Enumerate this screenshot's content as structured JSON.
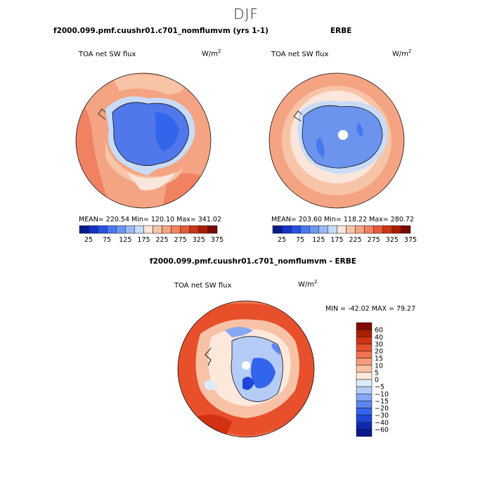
{
  "figure": {
    "title": "DJF"
  },
  "panels": {
    "model": {
      "title": "f2000.099.pmf.cuushr01.c701_nomflumvm (yrs 1-1)",
      "variable": "TOA net SW flux",
      "units_base": "W/m",
      "units_exp": "2",
      "stats_text": "MEAN= 220.54   Min= 120.10   Max= 341.02"
    },
    "obs": {
      "title": "ERBE",
      "variable": "TOA net SW flux",
      "units_base": "W/m",
      "units_exp": "2",
      "stats_text": "MEAN= 203.60   Min= 118.22   Max= 280.72"
    },
    "diff": {
      "title": "f2000.099.pmf.cuushr01.c701_nomflumvm - ERBE",
      "variable": "TOA net SW flux",
      "units_base": "W/m",
      "units_exp": "2",
      "stats_text": "MIN = -42.02  MAX =  79.27"
    }
  },
  "colors": {
    "abs_scale": [
      "#0a1a8c",
      "#1432c8",
      "#2850e6",
      "#4678f0",
      "#6c96f0",
      "#9ab8f4",
      "#c8dcf8",
      "#fbe6dc",
      "#f8c4a8",
      "#f4a482",
      "#f08262",
      "#e65a3a",
      "#cc3614",
      "#a81e06",
      "#7a0a00"
    ],
    "diff_scale": [
      "#0a1a8c",
      "#0f2ab0",
      "#1e46d8",
      "#3264ec",
      "#5a86f0",
      "#86a8f2",
      "#b4ccf6",
      "#deeaf8",
      "#fde8dc",
      "#f8c2a6",
      "#f49c7c",
      "#f07450",
      "#e8502c",
      "#d03212",
      "#aa1e04",
      "#820a00"
    ],
    "land_model": "#5078ea",
    "land_obs": "#6c94ee",
    "coast": "#111111"
  },
  "chart_data": [
    {
      "type": "heatmap",
      "projection": "south-polar-stereographic",
      "title": "f2000.099.pmf.cuushr01.c701_nomflumvm (yrs 1-1)",
      "variable": "TOA net SW flux",
      "units": "W/m2",
      "mean": 220.54,
      "min": 120.1,
      "max": 341.02,
      "colorbar": {
        "orientation": "horizontal",
        "labels": [
          "25",
          "75",
          "125",
          "175",
          "225",
          "275",
          "325",
          "375"
        ]
      }
    },
    {
      "type": "heatmap",
      "projection": "south-polar-stereographic",
      "title": "ERBE",
      "variable": "TOA net SW flux",
      "units": "W/m2",
      "mean": 203.6,
      "min": 118.22,
      "max": 280.72,
      "colorbar": {
        "orientation": "horizontal",
        "labels": [
          "25",
          "75",
          "125",
          "175",
          "225",
          "275",
          "325",
          "375"
        ]
      }
    },
    {
      "type": "heatmap",
      "projection": "south-polar-stereographic",
      "title": "f2000.099.pmf.cuushr01.c701_nomflumvm - ERBE",
      "variable": "TOA net SW flux",
      "units": "W/m2",
      "min": -42.02,
      "max": 79.27,
      "colorbar": {
        "orientation": "vertical",
        "labels": [
          "60",
          "40",
          "30",
          "20",
          "15",
          "10",
          "5",
          "0",
          "−5",
          "−10",
          "−15",
          "−20",
          "−30",
          "−40",
          "−60"
        ]
      }
    }
  ]
}
